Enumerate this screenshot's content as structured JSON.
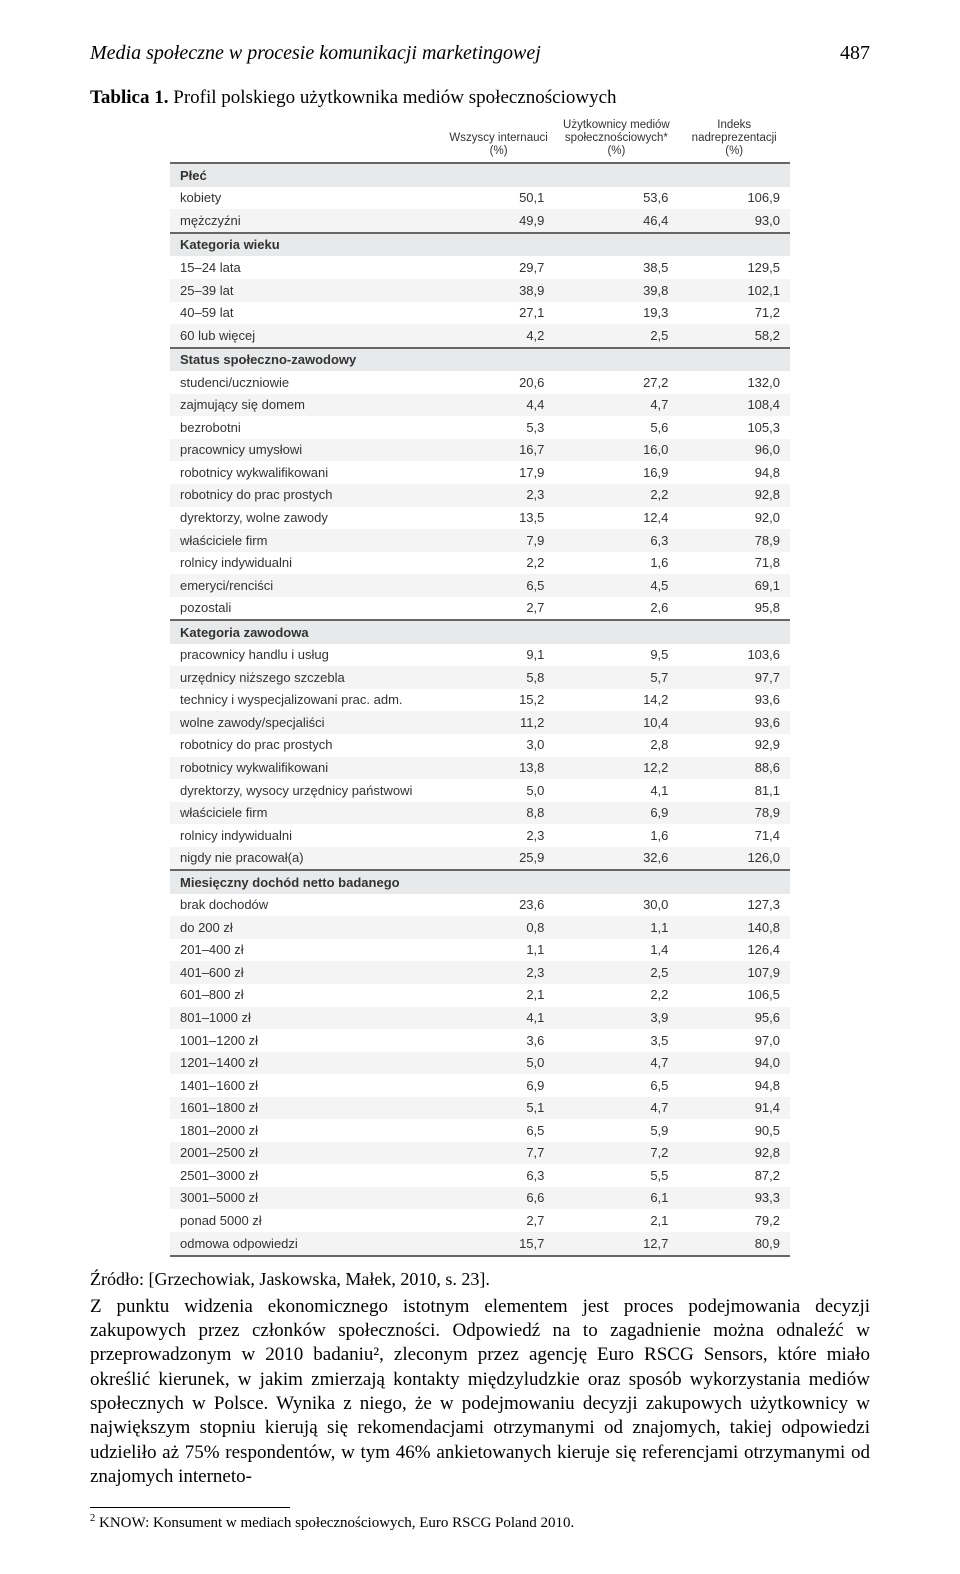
{
  "header": {
    "running_title": "Media społeczne w procesie komunikacji marketingowej",
    "page_number": "487"
  },
  "table_caption": {
    "prefix": "Tablica 1.",
    "title": "Profil polskiego użytkownika mediów społecznościowych"
  },
  "table": {
    "type": "table",
    "columns": [
      "",
      "Wszyscy internauci (%)",
      "Użytkownicy mediów społecznościowych* (%)",
      "Indeks nadreprezentacji (%)"
    ],
    "column_widths": [
      "44%",
      "18%",
      "20%",
      "18%"
    ],
    "header_align": [
      "left",
      "center",
      "center",
      "center"
    ],
    "background_color": "#ffffff",
    "stripe_color": "#f4f4f5",
    "category_bg": "#e8e9ea",
    "border_color": "#666666",
    "font_size": 13,
    "header_font_size": 11.5,
    "rows": [
      {
        "type": "category",
        "label": "Płeć"
      },
      {
        "type": "data",
        "label": "kobiety",
        "values": [
          "50,1",
          "53,6",
          "106,9"
        ]
      },
      {
        "type": "data",
        "label": "mężczyźni",
        "values": [
          "49,9",
          "46,4",
          "93,0"
        ],
        "last": true
      },
      {
        "type": "category",
        "label": "Kategoria wieku"
      },
      {
        "type": "data",
        "label": "15–24 lata",
        "values": [
          "29,7",
          "38,5",
          "129,5"
        ]
      },
      {
        "type": "data",
        "label": "25–39 lat",
        "values": [
          "38,9",
          "39,8",
          "102,1"
        ]
      },
      {
        "type": "data",
        "label": "40–59 lat",
        "values": [
          "27,1",
          "19,3",
          "71,2"
        ]
      },
      {
        "type": "data",
        "label": "60 lub więcej",
        "values": [
          "4,2",
          "2,5",
          "58,2"
        ],
        "last": true
      },
      {
        "type": "category",
        "label": "Status społeczno-zawodowy"
      },
      {
        "type": "data",
        "label": "studenci/uczniowie",
        "values": [
          "20,6",
          "27,2",
          "132,0"
        ]
      },
      {
        "type": "data",
        "label": "zajmujący się domem",
        "values": [
          "4,4",
          "4,7",
          "108,4"
        ]
      },
      {
        "type": "data",
        "label": "bezrobotni",
        "values": [
          "5,3",
          "5,6",
          "105,3"
        ]
      },
      {
        "type": "data",
        "label": "pracownicy umysłowi",
        "values": [
          "16,7",
          "16,0",
          "96,0"
        ]
      },
      {
        "type": "data",
        "label": "robotnicy wykwalifikowani",
        "values": [
          "17,9",
          "16,9",
          "94,8"
        ]
      },
      {
        "type": "data",
        "label": "robotnicy do prac prostych",
        "values": [
          "2,3",
          "2,2",
          "92,8"
        ]
      },
      {
        "type": "data",
        "label": "dyrektorzy, wolne zawody",
        "values": [
          "13,5",
          "12,4",
          "92,0"
        ]
      },
      {
        "type": "data",
        "label": "właściciele firm",
        "values": [
          "7,9",
          "6,3",
          "78,9"
        ]
      },
      {
        "type": "data",
        "label": "rolnicy indywidualni",
        "values": [
          "2,2",
          "1,6",
          "71,8"
        ]
      },
      {
        "type": "data",
        "label": "emeryci/renciści",
        "values": [
          "6,5",
          "4,5",
          "69,1"
        ]
      },
      {
        "type": "data",
        "label": "pozostali",
        "values": [
          "2,7",
          "2,6",
          "95,8"
        ],
        "last": true
      },
      {
        "type": "category",
        "label": "Kategoria zawodowa"
      },
      {
        "type": "data",
        "label": "pracownicy handlu i usług",
        "values": [
          "9,1",
          "9,5",
          "103,6"
        ]
      },
      {
        "type": "data",
        "label": "urzędnicy niższego szczebla",
        "values": [
          "5,8",
          "5,7",
          "97,7"
        ]
      },
      {
        "type": "data",
        "label": "technicy i wyspecjalizowani prac. adm.",
        "values": [
          "15,2",
          "14,2",
          "93,6"
        ]
      },
      {
        "type": "data",
        "label": "wolne zawody/specjaliści",
        "values": [
          "11,2",
          "10,4",
          "93,6"
        ]
      },
      {
        "type": "data",
        "label": "robotnicy do prac prostych",
        "values": [
          "3,0",
          "2,8",
          "92,9"
        ]
      },
      {
        "type": "data",
        "label": "robotnicy wykwalifikowani",
        "values": [
          "13,8",
          "12,2",
          "88,6"
        ]
      },
      {
        "type": "data",
        "label": "dyrektorzy, wysocy urzędnicy państwowi",
        "values": [
          "5,0",
          "4,1",
          "81,1"
        ]
      },
      {
        "type": "data",
        "label": "właściciele firm",
        "values": [
          "8,8",
          "6,9",
          "78,9"
        ]
      },
      {
        "type": "data",
        "label": "rolnicy indywidualni",
        "values": [
          "2,3",
          "1,6",
          "71,4"
        ]
      },
      {
        "type": "data",
        "label": "nigdy nie pracował(a)",
        "values": [
          "25,9",
          "32,6",
          "126,0"
        ],
        "last": true
      },
      {
        "type": "category",
        "label": "Miesięczny dochód netto badanego"
      },
      {
        "type": "data",
        "label": "brak dochodów",
        "values": [
          "23,6",
          "30,0",
          "127,3"
        ]
      },
      {
        "type": "data",
        "label": "do 200 zł",
        "values": [
          "0,8",
          "1,1",
          "140,8"
        ]
      },
      {
        "type": "data",
        "label": "201–400 zł",
        "values": [
          "1,1",
          "1,4",
          "126,4"
        ]
      },
      {
        "type": "data",
        "label": "401–600 zł",
        "values": [
          "2,3",
          "2,5",
          "107,9"
        ]
      },
      {
        "type": "data",
        "label": "601–800 zł",
        "values": [
          "2,1",
          "2,2",
          "106,5"
        ]
      },
      {
        "type": "data",
        "label": "801–1000 zł",
        "values": [
          "4,1",
          "3,9",
          "95,6"
        ]
      },
      {
        "type": "data",
        "label": "1001–1200 zł",
        "values": [
          "3,6",
          "3,5",
          "97,0"
        ]
      },
      {
        "type": "data",
        "label": "1201–1400 zł",
        "values": [
          "5,0",
          "4,7",
          "94,0"
        ]
      },
      {
        "type": "data",
        "label": "1401–1600 zł",
        "values": [
          "6,9",
          "6,5",
          "94,8"
        ]
      },
      {
        "type": "data",
        "label": "1601–1800 zł",
        "values": [
          "5,1",
          "4,7",
          "91,4"
        ]
      },
      {
        "type": "data",
        "label": "1801–2000 zł",
        "values": [
          "6,5",
          "5,9",
          "90,5"
        ]
      },
      {
        "type": "data",
        "label": "2001–2500 zł",
        "values": [
          "7,7",
          "7,2",
          "92,8"
        ]
      },
      {
        "type": "data",
        "label": "2501–3000 zł",
        "values": [
          "6,3",
          "5,5",
          "87,2"
        ]
      },
      {
        "type": "data",
        "label": "3001–5000 zł",
        "values": [
          "6,6",
          "6,1",
          "93,3"
        ]
      },
      {
        "type": "data",
        "label": "ponad 5000 zł",
        "values": [
          "2,7",
          "2,1",
          "79,2"
        ]
      },
      {
        "type": "data",
        "label": "odmowa odpowiedzi",
        "values": [
          "15,7",
          "12,7",
          "80,9"
        ],
        "last": true
      }
    ]
  },
  "source_line": "Źródło: [Grzechowiak, Jaskowska, Małek, 2010, s. 23].",
  "body_paragraph": "Z punktu widzenia ekonomicznego istotnym elementem jest proces podejmowania decyzji zakupowych przez członków społeczności. Odpowiedź na to zagadnienie można odnaleźć w przeprowadzonym w 2010 badaniu², zleconym przez agencję Euro RSCG Sensors, które miało określić kierunek, w jakim zmierzają kontakty międzyludzkie oraz sposób wykorzystania mediów społecznych w Polsce. Wynika z niego, że w podejmowaniu decyzji zakupowych użytkownicy w największym stopniu kierują się rekomendacjami otrzymanymi od znajomych, takiej odpowiedzi udzieliło aż 75% respondentów, w tym 46% ankietowanych kieruje się referencjami otrzymanymi od znajomych interneto-",
  "footnote": {
    "marker": "2",
    "text": "KNOW: Konsument w mediach społecznościowych, Euro RSCG Poland 2010."
  }
}
